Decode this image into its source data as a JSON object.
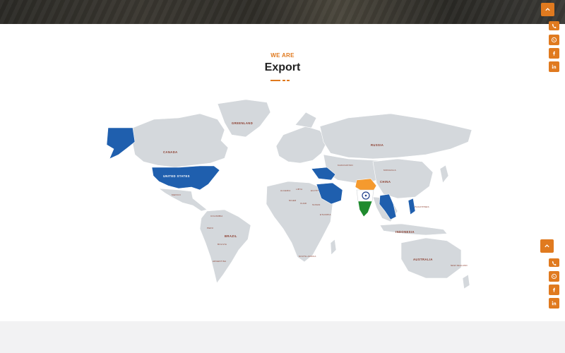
{
  "section": {
    "eyebrow": "WE ARE",
    "title": "Export"
  },
  "colors": {
    "accent": "#e07a1f",
    "export_highlight": "#1f5fae",
    "land": "#d4d8dc",
    "india_saffron": "#f59a2e",
    "india_green": "#1f8a2e"
  },
  "map": {
    "labels": {
      "greenland": "GREENLAND",
      "canada": "CANADA",
      "usa": "UNITED STATES",
      "brazil": "BRAZIL",
      "russia": "RUSSIA",
      "china": "CHINA",
      "australia": "AUSTRALIA",
      "indonesia": "INDONESIA",
      "mongolia": "MONGOLIA",
      "algeria": "ALGERIA",
      "libya": "LIBYA",
      "egypt": "EGYPT",
      "niger": "NIGER",
      "chad": "CHAD",
      "sudan": "SUDAN",
      "ethiopia": "ETHIOPIA",
      "south_africa": "SOUTH AFRICA",
      "mexico": "MEXICO",
      "peru": "PERU",
      "bolivia": "BOLIVIA",
      "argentina": "ARGENTINA",
      "colombia": "COLOMBIA",
      "kazakhstan": "KAZAKHSTAN",
      "philippines": "PHILIPPINES",
      "new_zealand": "NEW ZEALAND"
    },
    "export_countries": [
      "United States",
      "Iran",
      "Saudi Arabia",
      "Myanmar",
      "Thailand",
      "Philippines",
      "India"
    ]
  },
  "floating_groups": [
    {
      "scroll_top_icon": "chevron-up-icon",
      "social": [
        "phone-icon",
        "whatsapp-icon",
        "facebook-icon",
        "linkedin-icon"
      ]
    },
    {
      "scroll_top_icon": "chevron-up-icon",
      "social": [
        "phone-icon",
        "whatsapp-icon",
        "facebook-icon",
        "linkedin-icon"
      ]
    }
  ]
}
